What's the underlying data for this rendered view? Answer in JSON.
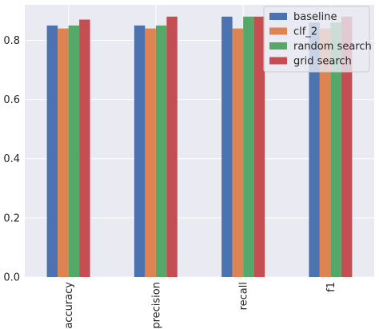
{
  "chart_data": {
    "type": "bar",
    "title": "",
    "xlabel": "",
    "ylabel": "",
    "categories": [
      "accuracy",
      "precision",
      "recall",
      "f1"
    ],
    "series": [
      {
        "name": "baseline",
        "color": "#4c72b0",
        "values": [
          0.85,
          0.85,
          0.88,
          0.86
        ]
      },
      {
        "name": "clf_2",
        "color": "#dd8452",
        "values": [
          0.84,
          0.84,
          0.84,
          0.84
        ]
      },
      {
        "name": "random search",
        "color": "#55a868",
        "values": [
          0.85,
          0.85,
          0.88,
          0.86
        ]
      },
      {
        "name": "grid search",
        "color": "#c44e52",
        "values": [
          0.87,
          0.88,
          0.88,
          0.88
        ]
      }
    ],
    "ylim": [
      0,
      0.92
    ],
    "yticks": [
      "0.0",
      "0.2",
      "0.4",
      "0.6",
      "0.8"
    ],
    "grid": true,
    "legend_position": "top-right",
    "background": "#eaeaf2",
    "grid_color": "#ffffff"
  }
}
